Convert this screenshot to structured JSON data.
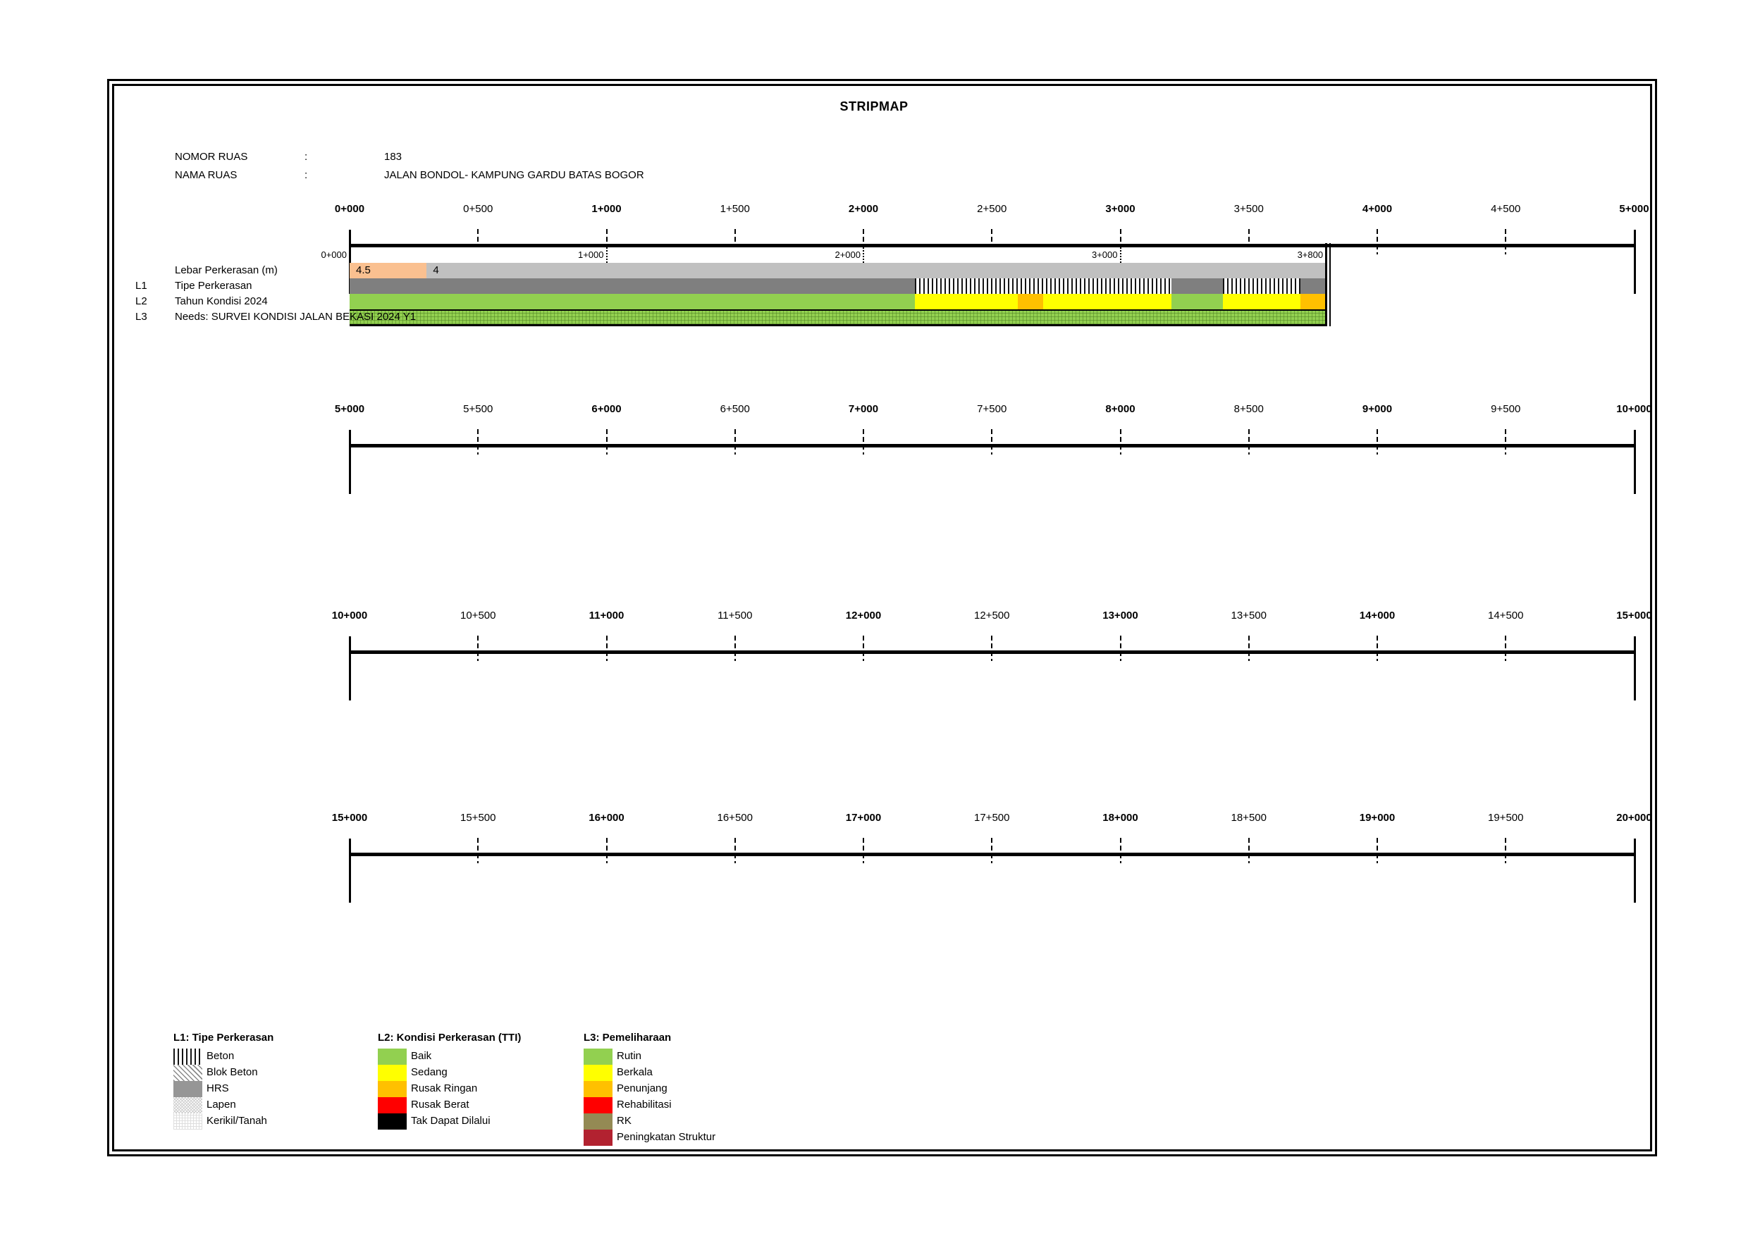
{
  "title": "STRIPMAP",
  "header": {
    "nomor_label": "NOMOR RUAS",
    "nama_label": "NAMA RUAS",
    "colon": ":",
    "nomor_value": "183",
    "nama_value": "JALAN BONDOL- KAMPUNG GARDU BATAS BOGOR"
  },
  "chart_data": {
    "type": "stripmap",
    "chainage_unit": "meters",
    "rulers": [
      {
        "start": 0,
        "end": 5000,
        "tick_every": 500,
        "bold_every": 1000
      },
      {
        "start": 5000,
        "end": 10000,
        "tick_every": 500,
        "bold_every": 1000
      },
      {
        "start": 10000,
        "end": 15000,
        "tick_every": 500,
        "bold_every": 1000
      },
      {
        "start": 15000,
        "end": 20000,
        "tick_every": 500,
        "bold_every": 1000
      }
    ],
    "strip": {
      "start": 0,
      "end": 3800,
      "chainage_marks": [
        {
          "m": 0,
          "label": "0+000"
        },
        {
          "m": 1000,
          "label": "1+000"
        },
        {
          "m": 2000,
          "label": "2+000"
        },
        {
          "m": 3000,
          "label": "3+000"
        },
        {
          "m": 3800,
          "label": "3+800"
        }
      ],
      "rows": [
        {
          "id": "lebar",
          "prefix": "",
          "label": "Lebar Perkerasan (m)",
          "segments": [
            {
              "from": 0,
              "to": 300,
              "value": "4.5",
              "style": "peach"
            },
            {
              "from": 300,
              "to": 3800,
              "value": "4",
              "style": "silver"
            }
          ]
        },
        {
          "id": "l1",
          "prefix": "L1",
          "label": "Tipe Perkerasan",
          "segments": [
            {
              "from": 0,
              "to": 2200,
              "value": "",
              "style": "hrs"
            },
            {
              "from": 2200,
              "to": 3200,
              "value": "",
              "style": "beton"
            },
            {
              "from": 3200,
              "to": 3400,
              "value": "",
              "style": "hrs"
            },
            {
              "from": 3400,
              "to": 3700,
              "value": "",
              "style": "beton"
            },
            {
              "from": 3700,
              "to": 3800,
              "value": "",
              "style": "hrs"
            }
          ]
        },
        {
          "id": "l2",
          "prefix": "L2",
          "label": "Tahun Kondisi 2024",
          "segments": [
            {
              "from": 0,
              "to": 2200,
              "value": "",
              "style": "baik"
            },
            {
              "from": 2200,
              "to": 2600,
              "value": "",
              "style": "sedang"
            },
            {
              "from": 2600,
              "to": 2700,
              "value": "",
              "style": "rusak_ringan"
            },
            {
              "from": 2700,
              "to": 3200,
              "value": "",
              "style": "sedang"
            },
            {
              "from": 3200,
              "to": 3400,
              "value": "",
              "style": "baik"
            },
            {
              "from": 3400,
              "to": 3700,
              "value": "",
              "style": "sedang"
            },
            {
              "from": 3700,
              "to": 3800,
              "value": "",
              "style": "rusak_ringan"
            }
          ]
        },
        {
          "id": "l3",
          "prefix": "L3",
          "label": "Needs: SURVEI KONDISI JALAN BEKASI 2024 Y1",
          "segments": [
            {
              "from": 0,
              "to": 3800,
              "value": "",
              "style": "rutin_grid"
            }
          ]
        }
      ]
    }
  },
  "legend": {
    "groups": [
      {
        "title": "L1: Tipe Perkerasan",
        "items": [
          {
            "label": "Beton",
            "swatch": "beton"
          },
          {
            "label": "Blok Beton",
            "swatch": "blok_beton"
          },
          {
            "label": "HRS",
            "swatch": "hrs_legend"
          },
          {
            "label": "Lapen",
            "swatch": "lapen"
          },
          {
            "label": "Kerikil/Tanah",
            "swatch": "kerikil"
          }
        ]
      },
      {
        "title": "L2: Kondisi Perkerasan (TTI)",
        "items": [
          {
            "label": "Baik",
            "swatch": "#92D050"
          },
          {
            "label": "Sedang",
            "swatch": "#FFFF00"
          },
          {
            "label": "Rusak Ringan",
            "swatch": "#FFC000"
          },
          {
            "label": "Rusak Berat",
            "swatch": "#FF0000"
          },
          {
            "label": "Tak Dapat Dilalui",
            "swatch": "#000000"
          }
        ]
      },
      {
        "title": "L3: Pemeliharaan",
        "items": [
          {
            "label": "Rutin",
            "swatch": "#92D050"
          },
          {
            "label": "Berkala",
            "swatch": "#FFFF00"
          },
          {
            "label": "Penunjang",
            "swatch": "#FFC000"
          },
          {
            "label": "Rehabilitasi",
            "swatch": "#FF0000"
          },
          {
            "label": "RK",
            "swatch": "#948A54"
          },
          {
            "label": "Peningkatan Struktur",
            "swatch": "#B22230"
          }
        ]
      }
    ]
  },
  "colors": {
    "baik_green": "#92D050",
    "sedang_yellow": "#FFFF00",
    "rusak_ringan_orange": "#FFC000",
    "rusak_berat_red": "#FF0000",
    "hrs_gray": "#7F7F7F",
    "lebar_peach": "#FAC090",
    "lebar_silver": "#C0C0C0",
    "rk_olive": "#948A54",
    "peningkatan_darkred": "#B22230"
  }
}
